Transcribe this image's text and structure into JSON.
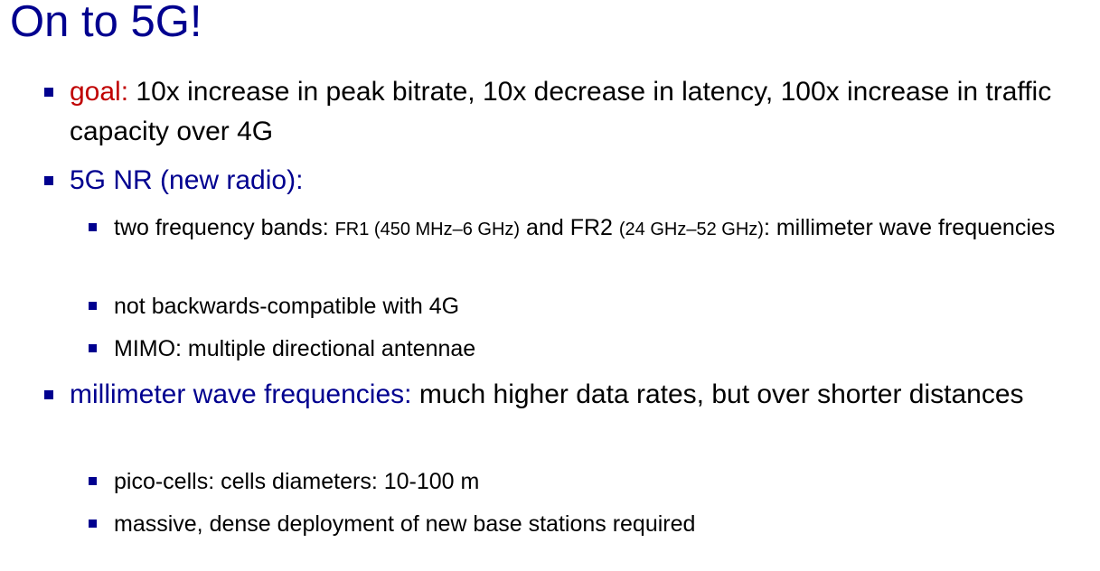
{
  "slide": {
    "title": "On to 5G!",
    "goal": {
      "label": "goal:",
      "text": " 10x increase in peak bitrate, 10x decrease in latency, 100x increase in traffic capacity over 4G"
    },
    "nr": {
      "label": "5G NR (new radio):",
      "sub": {
        "bands": {
          "part1": "two frequency bands: ",
          "fr1": "FR1 (450 MHz–6 GHz)",
          "part2": " and FR2 ",
          "fr2": "(24 GHz–52 GHz)",
          "part3": ": millimeter wave frequencies"
        },
        "compat": "not backwards-compatible with 4G",
        "mimo": "MIMO: multiple directional antennae"
      }
    },
    "mmwave": {
      "label": "millimeter wave frequencies:",
      "text": " much higher data rates, but over shorter distances",
      "sub": {
        "pico": "pico-cells: cells diameters: 10-100 m",
        "massive": "massive, dense deployment of new base stations required"
      }
    },
    "colors": {
      "title": "#00008f",
      "bullet": "#00008f",
      "goal_label": "#c00000",
      "blue_label": "#00008f"
    }
  }
}
